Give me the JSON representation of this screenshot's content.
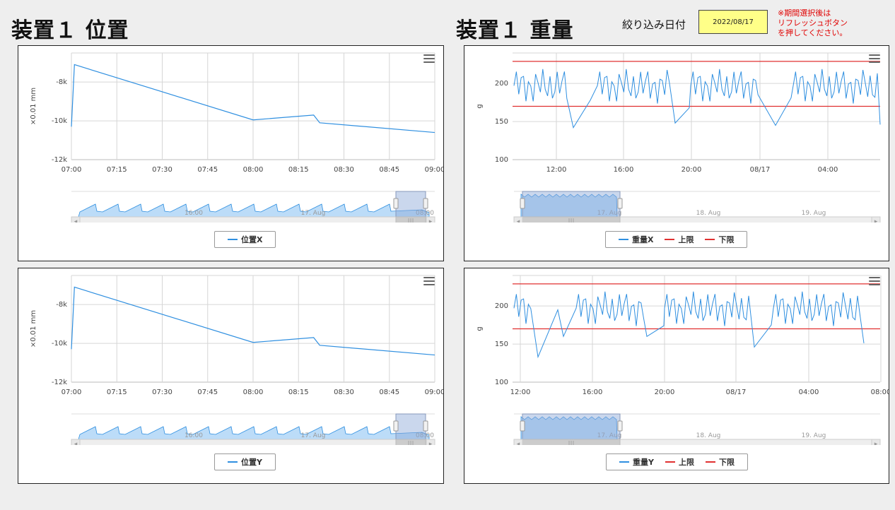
{
  "header": {
    "left_title": "装置１ 位置",
    "right_title": "装置１ 重量",
    "filter_label": "絞り込み日付",
    "filter_value": "2022/08/17",
    "note": "※期間選択後は\nリフレッシュボタン\nを押してください。"
  },
  "colors": {
    "series": "#2f8fe0",
    "limit": "#e03030",
    "navigator_fill": "#bcdcf8",
    "selection": "#8aa6d6"
  },
  "charts": [
    {
      "id": "posx",
      "ylabel": "×0.01 mm",
      "yticks": [
        "-8k",
        "-10k",
        "-12k"
      ],
      "xticks": [
        "07:00",
        "07:15",
        "07:30",
        "07:45",
        "08:00",
        "08:15",
        "08:30",
        "08:45",
        "09:00"
      ],
      "nav_labels": [
        "16:00",
        "17. Aug",
        "08:00"
      ],
      "legend": [
        {
          "label": "位置X",
          "color": "#2f8fe0"
        }
      ]
    },
    {
      "id": "wtx",
      "ylabel": "g",
      "yticks": [
        "200",
        "150",
        "100"
      ],
      "xticks": [
        "12:00",
        "16:00",
        "20:00",
        "08/17",
        "04:00"
      ],
      "nav_labels": [
        "17. Aug",
        "18. Aug",
        "19. Aug"
      ],
      "legend": [
        {
          "label": "重量X",
          "color": "#2f8fe0"
        },
        {
          "label": "上限",
          "color": "#e03030"
        },
        {
          "label": "下限",
          "color": "#e03030"
        }
      ]
    },
    {
      "id": "posy",
      "ylabel": "×0.01 mm",
      "yticks": [
        "-8k",
        "-10k",
        "-12k"
      ],
      "xticks": [
        "07:00",
        "07:15",
        "07:30",
        "07:45",
        "08:00",
        "08:15",
        "08:30",
        "08:45",
        "09:00"
      ],
      "nav_labels": [
        "16:00",
        "17. Aug",
        "08:00"
      ],
      "legend": [
        {
          "label": "位置Y",
          "color": "#2f8fe0"
        }
      ]
    },
    {
      "id": "wty",
      "ylabel": "g",
      "yticks": [
        "200",
        "150",
        "100"
      ],
      "xticks": [
        "12:00",
        "16:00",
        "20:00",
        "08/17",
        "04:00",
        "08:00"
      ],
      "nav_labels": [
        "17. Aug",
        "18. Aug",
        "19. Aug"
      ],
      "legend": [
        {
          "label": "重量Y",
          "color": "#2f8fe0"
        },
        {
          "label": "上限",
          "color": "#e03030"
        },
        {
          "label": "下限",
          "color": "#e03030"
        }
      ]
    }
  ],
  "chart_data": [
    {
      "type": "line",
      "title": "",
      "ylabel": "×0.01 mm",
      "ylim": [
        -12000,
        -6500
      ],
      "x": [
        "07:00",
        "07:01",
        "08:00",
        "08:20",
        "08:22",
        "09:00"
      ],
      "series": [
        {
          "name": "位置X",
          "values": [
            -10300,
            -7100,
            -9950,
            -9700,
            -10100,
            -10600
          ]
        }
      ]
    },
    {
      "type": "line",
      "title": "",
      "ylabel": "g",
      "ylim": [
        100,
        240
      ],
      "series": [
        {
          "name": "重量X",
          "values": []
        },
        {
          "name": "上限",
          "values": [
            229
          ]
        },
        {
          "name": "下限",
          "values": [
            170
          ]
        }
      ]
    },
    {
      "type": "line",
      "title": "",
      "ylabel": "×0.01 mm",
      "ylim": [
        -12000,
        -6500
      ],
      "x": [
        "07:00",
        "07:01",
        "08:00",
        "08:20",
        "08:22",
        "09:00"
      ],
      "series": [
        {
          "name": "位置Y",
          "values": [
            -10300,
            -7100,
            -9950,
            -9700,
            -10100,
            -10600
          ]
        }
      ]
    },
    {
      "type": "line",
      "title": "",
      "ylabel": "g",
      "ylim": [
        100,
        240
      ],
      "series": [
        {
          "name": "重量Y",
          "values": []
        },
        {
          "name": "上限",
          "values": [
            229
          ]
        },
        {
          "name": "下限",
          "values": [
            170
          ]
        }
      ]
    }
  ]
}
